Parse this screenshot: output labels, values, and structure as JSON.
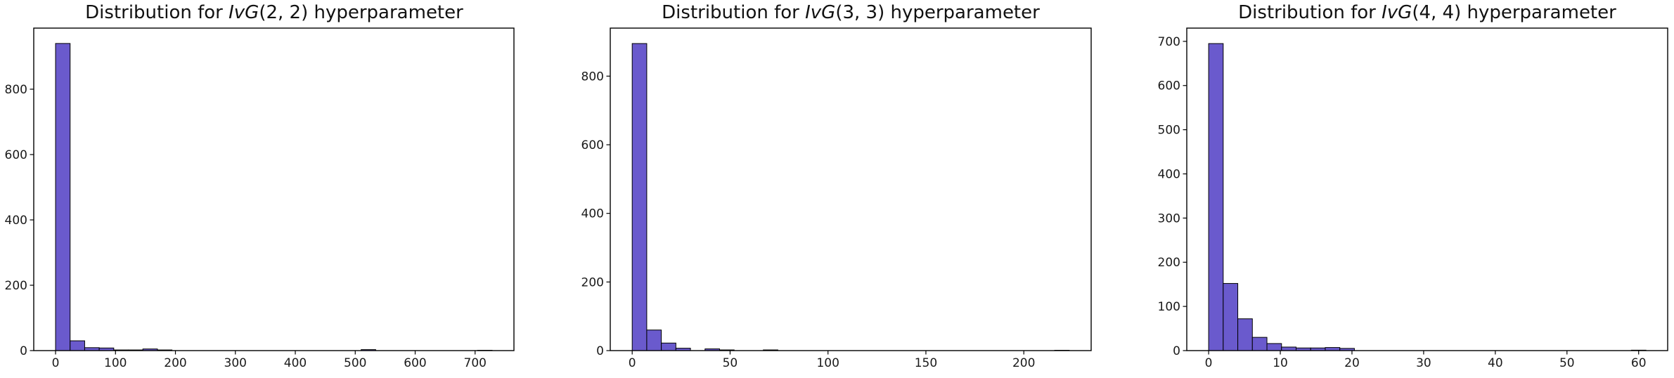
{
  "figure": {
    "background": "#ffffff"
  },
  "style": {
    "bar_color": "#6a5acd",
    "bar_edge_color": "#000000",
    "axis_color": "#000000",
    "tick_label_color": "#1a1a1a",
    "title_color": "#111111",
    "plot_background": "#ffffff"
  },
  "chart_data": [
    {
      "type": "bar",
      "histogram": true,
      "title": "Distribution for IvG(2, 2) hyperparameter",
      "title_parts": {
        "prefix": "Distribution for ",
        "italic": "IvG",
        "upright": "(2, 2)",
        "suffix": " hyperparameter"
      },
      "xlabel": "",
      "ylabel": "",
      "bin_start": 0,
      "bin_width": 24.28,
      "values": [
        940,
        30,
        9,
        8,
        2,
        2,
        5,
        2,
        0,
        0,
        0,
        0,
        0,
        0,
        0,
        0,
        0,
        0,
        0,
        0,
        0,
        3,
        0,
        0,
        0,
        0,
        0,
        0,
        0,
        1
      ],
      "xlim": [
        -36.4,
        764.8
      ],
      "ylim": [
        0,
        987
      ],
      "xticks": [
        0,
        100,
        200,
        300,
        400,
        500,
        600,
        700
      ],
      "yticks": [
        0,
        200,
        400,
        600,
        800
      ],
      "grid": false,
      "legend": null
    },
    {
      "type": "bar",
      "histogram": true,
      "title": "Distribution for IvG(3, 3) hyperparameter",
      "title_parts": {
        "prefix": "Distribution for ",
        "italic": "IvG",
        "upright": "(3, 3)",
        "suffix": " hyperparameter"
      },
      "xlabel": "",
      "ylabel": "",
      "bin_start": 0,
      "bin_width": 7.44,
      "values": [
        895,
        60,
        22,
        7,
        0,
        5,
        2,
        0,
        0,
        2,
        0,
        0,
        0,
        0,
        0,
        0,
        0,
        0,
        0,
        0,
        0,
        0,
        0,
        0,
        0,
        0,
        0,
        0,
        0,
        1
      ],
      "xlim": [
        -11.2,
        234.4
      ],
      "ylim": [
        0,
        940
      ],
      "xticks": [
        0,
        50,
        100,
        150,
        200
      ],
      "yticks": [
        0,
        200,
        400,
        600,
        800
      ],
      "grid": false,
      "legend": null
    },
    {
      "type": "bar",
      "histogram": true,
      "title": "Distribution for IvG(4, 4) hyperparameter",
      "title_parts": {
        "prefix": "Distribution for ",
        "italic": "IvG",
        "upright": "(4, 4)",
        "suffix": " hyperparameter"
      },
      "xlabel": "",
      "ylabel": "",
      "bin_start": 0,
      "bin_width": 2.034,
      "values": [
        695,
        152,
        72,
        30,
        16,
        8,
        6,
        6,
        7,
        5,
        0,
        0,
        0,
        0,
        0,
        0,
        0,
        0,
        0,
        0,
        0,
        0,
        0,
        0,
        0,
        0,
        0,
        0,
        0,
        1
      ],
      "xlim": [
        -3.05,
        64.05
      ],
      "ylim": [
        0,
        730
      ],
      "xticks": [
        0,
        10,
        20,
        30,
        40,
        50,
        60
      ],
      "yticks": [
        0,
        100,
        200,
        300,
        400,
        500,
        600,
        700
      ],
      "grid": false,
      "legend": null
    }
  ]
}
